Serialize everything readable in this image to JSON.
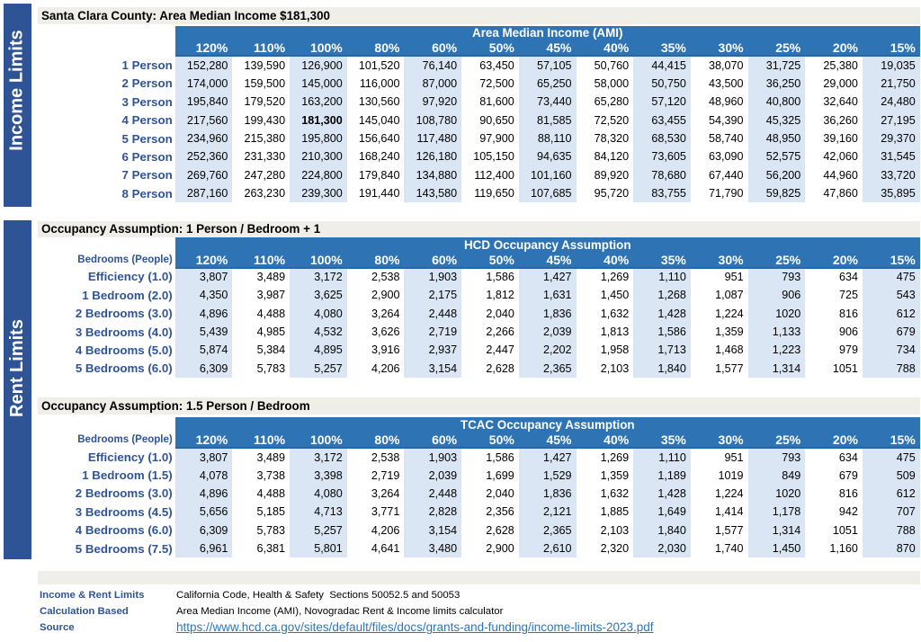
{
  "colors": {
    "sidebar_blue": "#2F5496",
    "header_blue": "#2E74B5",
    "band_light_blue": "#DAE6F3",
    "title_gray": "#F0EEE8",
    "label_text_blue": "#2F5496",
    "link_blue": "#2E75B6"
  },
  "sidebars": [
    {
      "label": "Income Limits"
    },
    {
      "label": "Rent Limits"
    }
  ],
  "columns": [
    "120%",
    "110%",
    "100%",
    "80%",
    "60%",
    "50%",
    "45%",
    "40%",
    "35%",
    "30%",
    "25%",
    "20%",
    "15%"
  ],
  "tables": [
    {
      "title": "Santa Clara County: Area Median Income $181,300",
      "band_title": "Area Median Income (AMI)",
      "corner_label": "",
      "bold_cells": [
        [
          3,
          2
        ]
      ],
      "rows": [
        {
          "label": "1 Person",
          "values": [
            "152,280",
            "139,590",
            "126,900",
            "101,520",
            "76,140",
            "63,450",
            "57,105",
            "50,760",
            "44,415",
            "38,070",
            "31,725",
            "25,380",
            "19,035"
          ]
        },
        {
          "label": "2 Person",
          "values": [
            "174,000",
            "159,500",
            "145,000",
            "116,000",
            "87,000",
            "72,500",
            "65,250",
            "58,000",
            "50,750",
            "43,500",
            "36,250",
            "29,000",
            "21,750"
          ]
        },
        {
          "label": "3 Person",
          "values": [
            "195,840",
            "179,520",
            "163,200",
            "130,560",
            "97,920",
            "81,600",
            "73,440",
            "65,280",
            "57,120",
            "48,960",
            "40,800",
            "32,640",
            "24,480"
          ]
        },
        {
          "label": "4 Person",
          "values": [
            "217,560",
            "199,430",
            "181,300",
            "145,040",
            "108,780",
            "90,650",
            "81,585",
            "72,520",
            "63,455",
            "54,390",
            "45,325",
            "36,260",
            "27,195"
          ]
        },
        {
          "label": "5 Person",
          "values": [
            "234,960",
            "215,380",
            "195,800",
            "156,640",
            "117,480",
            "97,900",
            "88,110",
            "78,320",
            "68,530",
            "58,740",
            "48,950",
            "39,160",
            "29,370"
          ]
        },
        {
          "label": "6 Person",
          "values": [
            "252,360",
            "231,330",
            "210,300",
            "168,240",
            "126,180",
            "105,150",
            "94,635",
            "84,120",
            "73,605",
            "63,090",
            "52,575",
            "42,060",
            "31,545"
          ]
        },
        {
          "label": "7 Person",
          "values": [
            "269,760",
            "247,280",
            "224,800",
            "179,840",
            "134,880",
            "112,400",
            "101,160",
            "89,920",
            "78,680",
            "67,440",
            "56,200",
            "44,960",
            "33,720"
          ]
        },
        {
          "label": "8 Person",
          "values": [
            "287,160",
            "263,230",
            "239,300",
            "191,440",
            "143,580",
            "119,650",
            "107,685",
            "95,720",
            "83,755",
            "71,790",
            "59,825",
            "47,860",
            "35,895"
          ]
        }
      ]
    },
    {
      "title": "Occupancy Assumption: 1 Person / Bedroom + 1",
      "band_title": "HCD Occupancy Assumption",
      "corner_label": "Bedrooms (People)",
      "bold_cells": [],
      "rows": [
        {
          "label": "Efficiency (1.0)",
          "values": [
            "3,807",
            "3,489",
            "3,172",
            "2,538",
            "1,903",
            "1,586",
            "1,427",
            "1,269",
            "1,110",
            "951",
            "793",
            "634",
            "475"
          ]
        },
        {
          "label": "1 Bedroom (2.0)",
          "values": [
            "4,350",
            "3,987",
            "3,625",
            "2,900",
            "2,175",
            "1,812",
            "1,631",
            "1,450",
            "1,268",
            "1,087",
            "906",
            "725",
            "543"
          ]
        },
        {
          "label": "2 Bedrooms (3.0)",
          "values": [
            "4,896",
            "4,488",
            "4,080",
            "3,264",
            "2,448",
            "2,040",
            "1,836",
            "1,632",
            "1,428",
            "1,224",
            "1020",
            "816",
            "612"
          ]
        },
        {
          "label": "3 Bedrooms (4.0)",
          "values": [
            "5,439",
            "4,985",
            "4,532",
            "3,626",
            "2,719",
            "2,266",
            "2,039",
            "1,813",
            "1,586",
            "1,359",
            "1,133",
            "906",
            "679"
          ]
        },
        {
          "label": "4 Bedrooms (5.0)",
          "values": [
            "5,874",
            "5,384",
            "4,895",
            "3,916",
            "2,937",
            "2,447",
            "2,202",
            "1,958",
            "1,713",
            "1,468",
            "1,223",
            "979",
            "734"
          ]
        },
        {
          "label": "5 Bedrooms (6.0)",
          "values": [
            "6,309",
            "5,783",
            "5,257",
            "4,206",
            "3,154",
            "2,628",
            "2,365",
            "2,103",
            "1,840",
            "1,577",
            "1,314",
            "1051",
            "788"
          ]
        }
      ]
    },
    {
      "title": "Occupancy Assumption: 1.5 Person / Bedroom",
      "band_title": "TCAC Occupancy Assumption",
      "corner_label": "Bedrooms (People)",
      "bold_cells": [],
      "rows": [
        {
          "label": "Efficiency (1.0)",
          "values": [
            "3,807",
            "3,489",
            "3,172",
            "2,538",
            "1,903",
            "1,586",
            "1,427",
            "1,269",
            "1,110",
            "951",
            "793",
            "634",
            "475"
          ]
        },
        {
          "label": "1 Bedroom (1.5)",
          "values": [
            "4,078",
            "3,738",
            "3,398",
            "2,719",
            "2,039",
            "1,699",
            "1,529",
            "1,359",
            "1,189",
            "1019",
            "849",
            "679",
            "509"
          ]
        },
        {
          "label": "2 Bedrooms (3.0)",
          "values": [
            "4,896",
            "4,488",
            "4,080",
            "3,264",
            "2,448",
            "2,040",
            "1,836",
            "1,632",
            "1,428",
            "1,224",
            "1020",
            "816",
            "612"
          ]
        },
        {
          "label": "3 Bedrooms (4.5)",
          "values": [
            "5,656",
            "5,185",
            "4,713",
            "3,771",
            "2,828",
            "2,356",
            "2,121",
            "1,885",
            "1,649",
            "1,414",
            "1,178",
            "942",
            "707"
          ]
        },
        {
          "label": "4 Bedrooms (6.0)",
          "values": [
            "6,309",
            "5,783",
            "5,257",
            "4,206",
            "3,154",
            "2,628",
            "2,365",
            "2,103",
            "1,840",
            "1,577",
            "1,314",
            "1051",
            "788"
          ]
        },
        {
          "label": "5 Bedrooms (7.5)",
          "values": [
            "6,961",
            "6,381",
            "5,801",
            "4,641",
            "3,480",
            "2,900",
            "2,610",
            "2,320",
            "2,030",
            "1,740",
            "1,450",
            "1,160",
            "870"
          ]
        }
      ]
    }
  ],
  "footer": {
    "rows": [
      {
        "label": "Income & Rent Limits",
        "value": "California Code, Health & Safety  Sections 50052.5 and 50053"
      },
      {
        "label": "Calculation Based",
        "value": "Area Median Income (AMI), Novogradac Rent & Income limits calculator"
      },
      {
        "label": "Source",
        "value": "https://www.hcd.ca.gov/sites/default/files/docs/grants-and-funding/income-limits-2023.pdf"
      }
    ]
  }
}
